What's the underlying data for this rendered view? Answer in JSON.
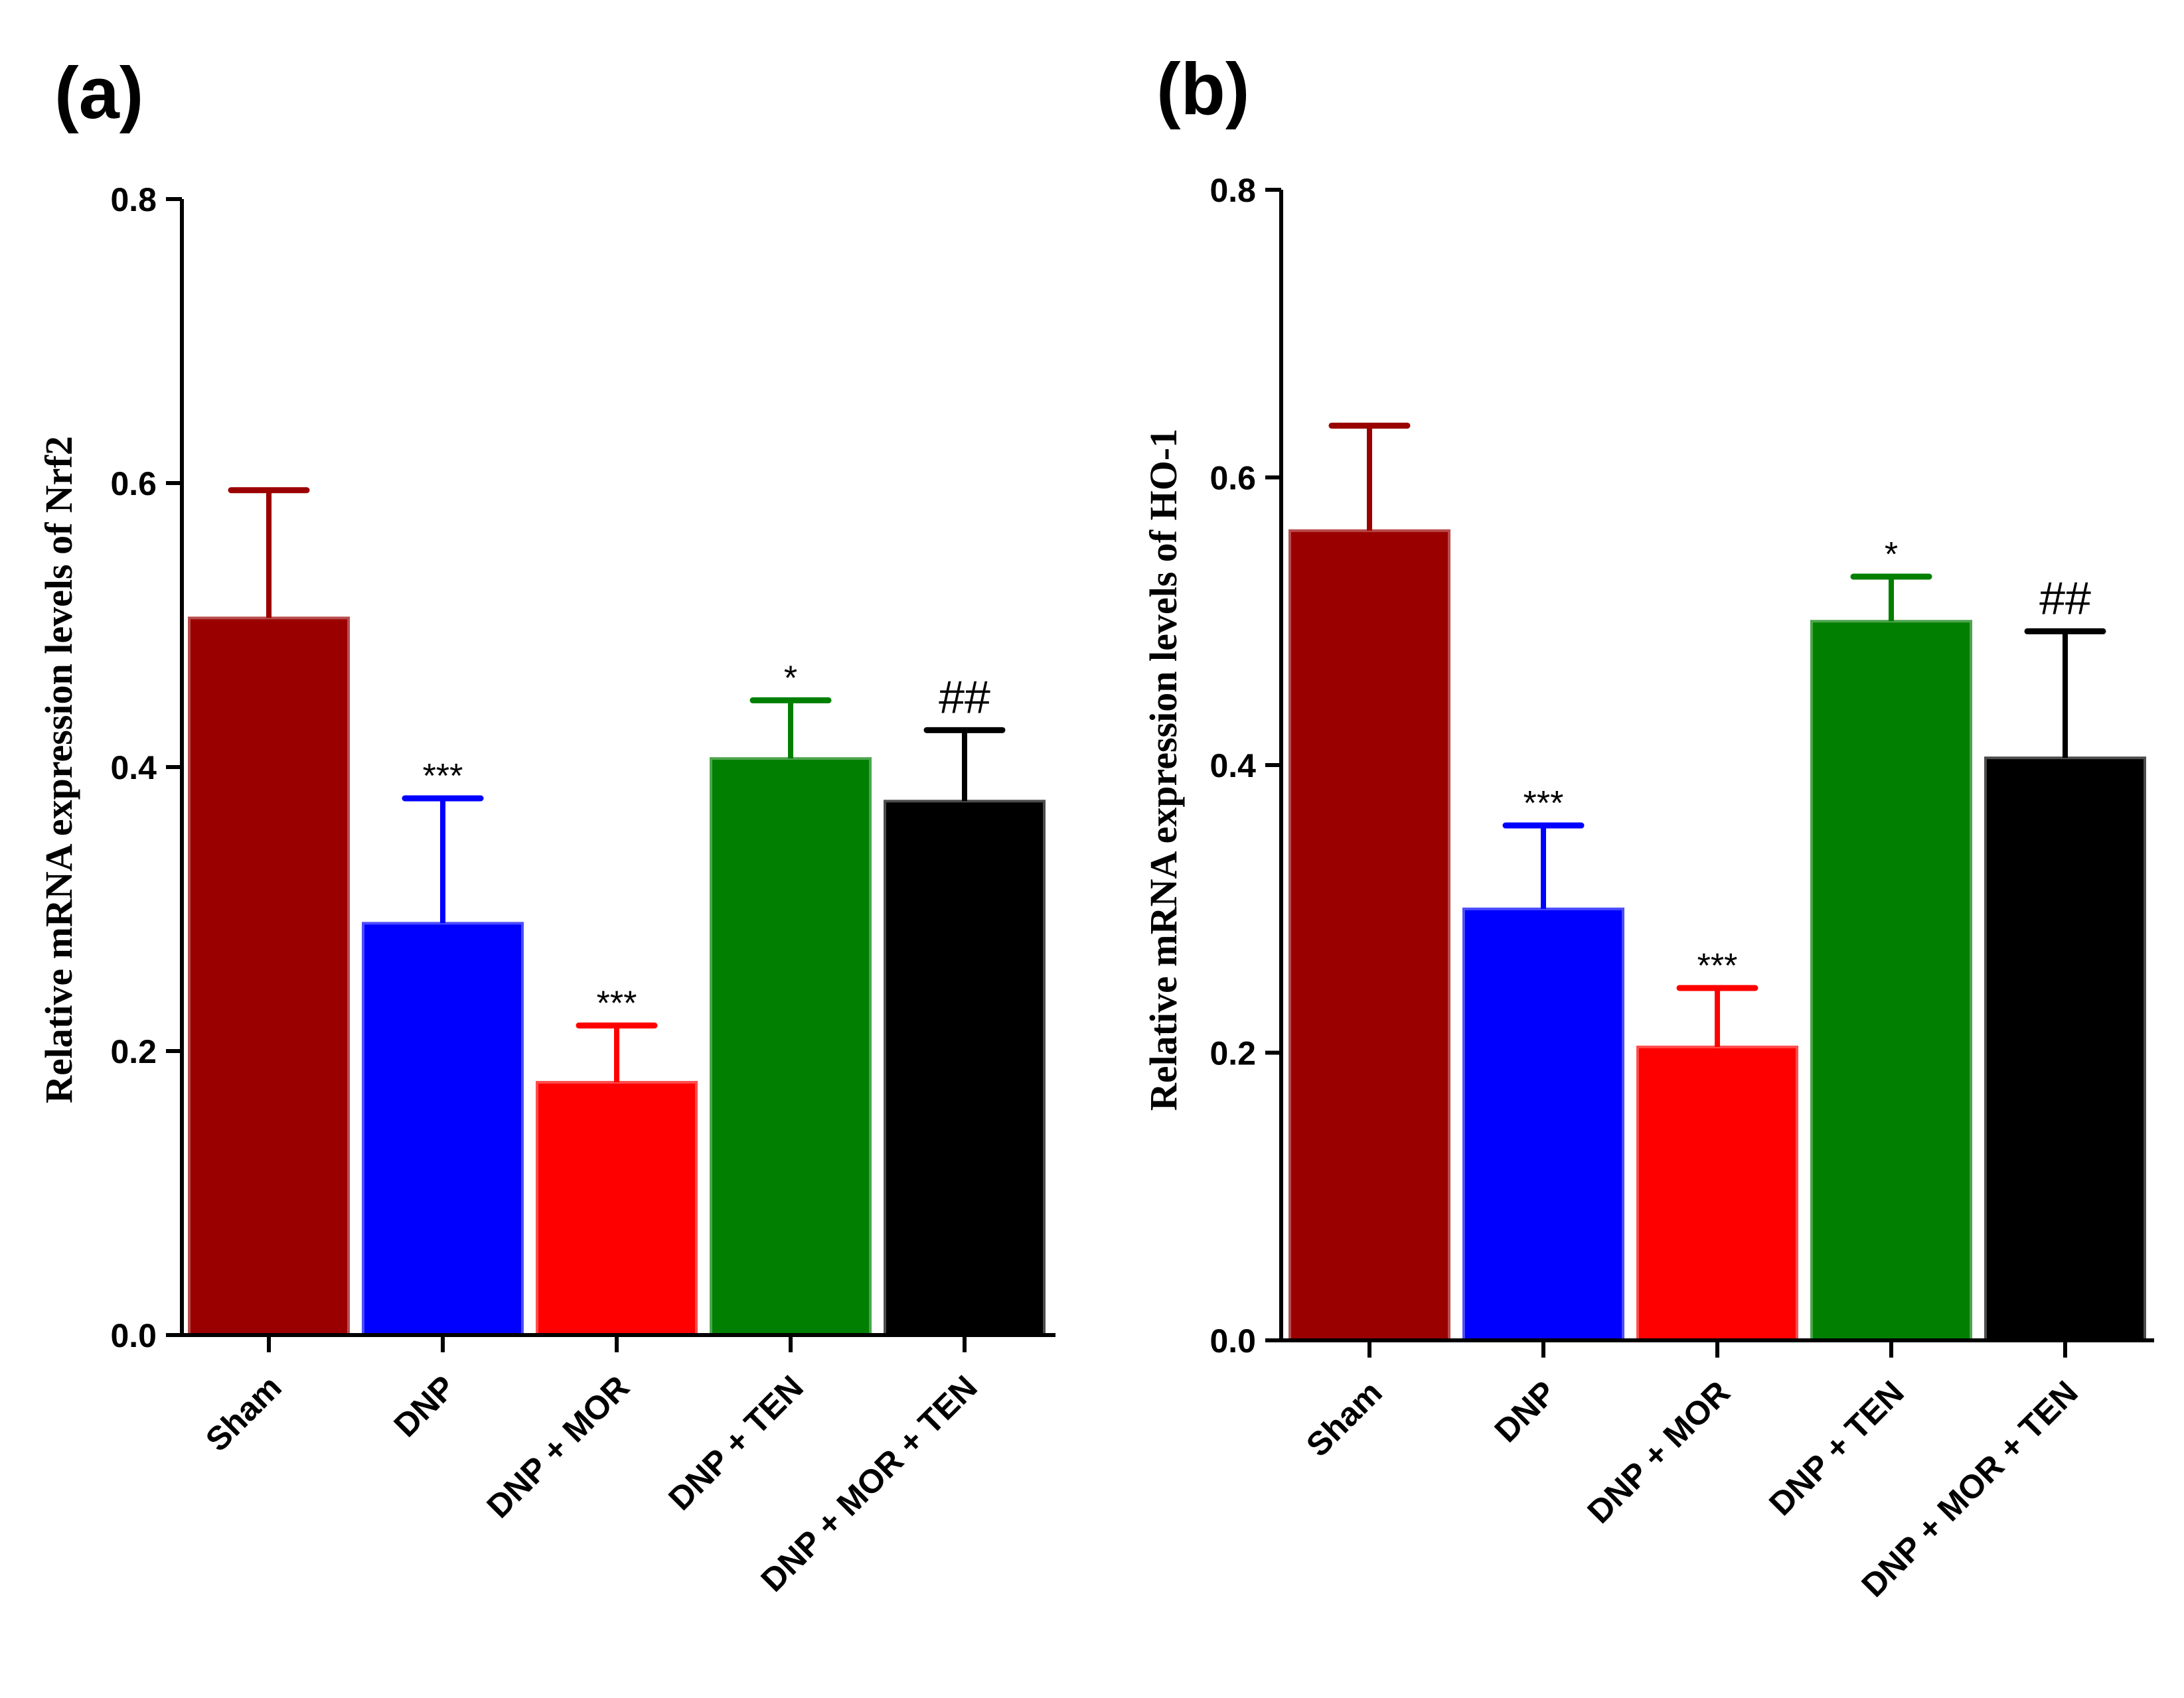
{
  "chart_data": [
    {
      "panel": "(a)",
      "type": "bar",
      "title": "",
      "xlabel": "",
      "ylabel": "Relative mRNA expression levels of Nrf2",
      "ylim": [
        0,
        0.8
      ],
      "yticks": [
        "0.0",
        "0.2",
        "0.4",
        "0.6",
        "0.8"
      ],
      "categories": [
        "Sham",
        "DNP",
        "DNP + MOR",
        "DNP + TEN",
        "DNP + MOR + TEN"
      ],
      "values": [
        0.505,
        0.29,
        0.178,
        0.406,
        0.376
      ],
      "errors": [
        0.09,
        0.088,
        0.04,
        0.041,
        0.05
      ],
      "colors": [
        "#9b0000",
        "#0000ff",
        "#ff0000",
        "#007f00",
        "#000000"
      ],
      "annotations": [
        "",
        "***",
        "***",
        "*",
        "##"
      ],
      "grid": false
    },
    {
      "panel": "(b)",
      "type": "bar",
      "title": "",
      "xlabel": "",
      "ylabel": "Relative mRNA expression levels of HO-1",
      "ylim": [
        0,
        0.8
      ],
      "yticks": [
        "0.0",
        "0.2",
        "0.4",
        "0.6",
        "0.8"
      ],
      "categories": [
        "Sham",
        "DNP",
        "DNP + MOR",
        "DNP + TEN",
        "DNP + MOR + TEN"
      ],
      "values": [
        0.563,
        0.3,
        0.204,
        0.5,
        0.405
      ],
      "errors": [
        0.073,
        0.058,
        0.041,
        0.031,
        0.088
      ],
      "colors": [
        "#9b0000",
        "#0000ff",
        "#ff0000",
        "#007f00",
        "#000000"
      ],
      "annotations": [
        "",
        "***",
        "***",
        "*",
        "##"
      ],
      "grid": false
    }
  ]
}
